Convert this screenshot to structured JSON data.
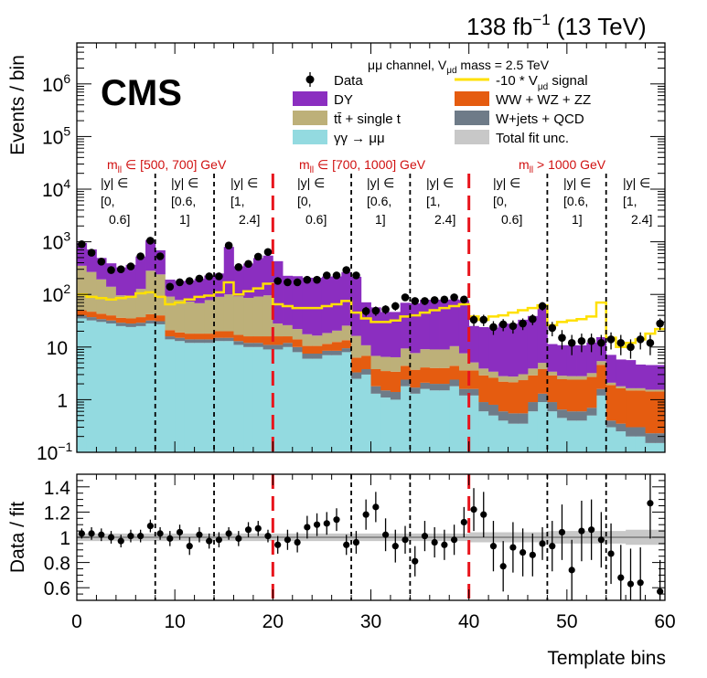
{
  "header": {
    "lumi": "138 fb",
    "lumi_exp": "−1",
    "energy": " (13 TeV)",
    "experiment": "CMS"
  },
  "legend": {
    "channel_text": "μμ channel, V",
    "channel_sub": "μd",
    "channel_tail": " mass = 2.5 TeV",
    "items": [
      {
        "label": "Data",
        "kind": "marker"
      },
      {
        "label": "-10 * V",
        "sub": "μd",
        "tail": " signal",
        "kind": "line",
        "color": "#ffe000"
      },
      {
        "label": "DY",
        "kind": "box",
        "color": "#8b2ec0"
      },
      {
        "label": "WW + WZ + ZZ",
        "kind": "box",
        "color": "#e55c10"
      },
      {
        "label": "tt̄ + single t",
        "kind": "box",
        "color": "#bdb079"
      },
      {
        "label": "W+jets + QCD",
        "kind": "box",
        "color": "#6e7b88"
      },
      {
        "label": "γγ → μμ",
        "kind": "box",
        "color": "#93dae0"
      },
      {
        "label": "Total fit unc.",
        "kind": "box",
        "color": "#c8c8c8"
      }
    ]
  },
  "regions": [
    {
      "mass": "m",
      "mass_sub": "ll",
      "mass_range": " ∈ [500, 700] GeV",
      "y": [
        {
          "l1": "|y| ∈",
          "l2": "[0,",
          "l3": "0.6]"
        },
        {
          "l1": "|y| ∈",
          "l2": "[0.6,",
          "l3": "1]"
        },
        {
          "l1": "|y| ∈",
          "l2": "[1,",
          "l3": "2.4]"
        }
      ]
    },
    {
      "mass": "m",
      "mass_sub": "ll",
      "mass_range": " ∈ [700, 1000] GeV",
      "y": [
        {
          "l1": "|y| ∈",
          "l2": "[0,",
          "l3": "0.6]"
        },
        {
          "l1": "|y| ∈",
          "l2": "[0.6,",
          "l3": "1]"
        },
        {
          "l1": "|y| ∈",
          "l2": "[1,",
          "l3": "2.4]"
        }
      ]
    },
    {
      "mass": "m",
      "mass_sub": "ll",
      "mass_range": " > 1000 GeV",
      "y": [
        {
          "l1": "|y| ∈",
          "l2": "[0,",
          "l3": "0.6]"
        },
        {
          "l1": "|y| ∈",
          "l2": "[0.6,",
          "l3": "1]"
        },
        {
          "l1": "|y| ∈",
          "l2": "[1,",
          "l3": "2.4]"
        }
      ]
    }
  ],
  "chart_data": {
    "type": "bar",
    "stacked": true,
    "xlabel": "Template bins",
    "ylabel_top": "Events / bin",
    "ylabel_bottom": "Data / fit",
    "xlim": [
      0,
      60
    ],
    "ylim_top": [
      0.1,
      6000000
    ],
    "ylim_bottom": [
      0.5,
      1.5
    ],
    "yscale_top": "log",
    "x_ticks": [
      0,
      10,
      20,
      30,
      40,
      50,
      60
    ],
    "y_ticks_top": [
      {
        "base": "10",
        "exp": "−1",
        "value": 0.1
      },
      {
        "base": "1",
        "exp": "",
        "value": 1
      },
      {
        "base": "10",
        "exp": "",
        "value": 10
      },
      {
        "base": "10",
        "exp": "2",
        "value": 100
      },
      {
        "base": "10",
        "exp": "3",
        "value": 1000
      },
      {
        "base": "10",
        "exp": "4",
        "value": 10000
      },
      {
        "base": "10",
        "exp": "5",
        "value": 100000
      },
      {
        "base": "10",
        "exp": "6",
        "value": 1000000
      }
    ],
    "y_ticks_bottom": [
      "0.6",
      "0.8",
      "1",
      "1.2",
      "1.4"
    ],
    "y_ticks_bottom_values": [
      0.6,
      0.8,
      1.0,
      1.2,
      1.4
    ],
    "mass_boundaries": [
      20,
      40
    ],
    "rapidity_boundaries": [
      8,
      14,
      28,
      34,
      48,
      54
    ],
    "bins": 60,
    "series": [
      {
        "name": "γγ → μμ",
        "color": "#93dae0",
        "values": [
          35,
          32,
          30,
          28,
          25,
          24,
          25,
          28,
          27,
          14,
          13,
          12,
          12,
          12,
          13,
          13,
          11,
          10,
          10,
          9,
          9,
          10,
          8,
          6,
          6,
          7,
          7,
          8,
          2.5,
          3,
          1.3,
          1.1,
          1,
          1.8,
          1.3,
          1.6,
          1.5,
          1.5,
          1.8,
          1.2,
          1.2,
          0.6,
          0.5,
          0.4,
          0.35,
          0.35,
          0.6,
          0.9,
          0.6,
          0.45,
          0.4,
          0.4,
          0.5,
          1.2,
          0.3,
          0.25,
          0.2,
          0.2,
          0.15,
          0.15
        ]
      },
      {
        "name": "W+jets + QCD",
        "color": "#6e7b88",
        "values": [
          5,
          5,
          4,
          4,
          4,
          4,
          4,
          4,
          4,
          2,
          2,
          2,
          2,
          2,
          2,
          2,
          2,
          2,
          2,
          2,
          2,
          2,
          2,
          1.5,
          1.5,
          1.5,
          1.5,
          1.5,
          0.8,
          0.8,
          0.5,
          0.4,
          0.4,
          0.6,
          0.4,
          0.5,
          0.5,
          0.5,
          0.6,
          0.4,
          0.4,
          0.3,
          0.3,
          0.2,
          0.2,
          0.2,
          0.3,
          0.4,
          0.3,
          0.2,
          0.2,
          0.2,
          0.2,
          0.4,
          0.1,
          0.1,
          0.1,
          0.1,
          0.08,
          0.08
        ]
      },
      {
        "name": "WW + WZ + ZZ",
        "color": "#e55c10",
        "values": [
          10,
          10,
          9,
          8,
          7,
          7,
          8,
          10,
          9,
          5,
          4,
          4,
          4,
          4,
          5,
          5,
          4,
          4,
          4,
          5,
          5,
          4,
          4,
          3,
          3,
          3,
          4,
          4,
          3,
          3,
          2,
          2,
          2,
          2,
          2,
          2,
          2,
          2,
          2,
          2,
          2,
          2,
          1.8,
          1.6,
          1.6,
          1.8,
          2,
          2.5,
          2,
          1.8,
          1.8,
          1.8,
          2,
          3,
          1.5,
          1.3,
          1.2,
          1.2,
          1.2,
          1.2
        ]
      },
      {
        "name": "tt̄ + single t",
        "color": "#bdb079",
        "values": [
          300,
          220,
          150,
          100,
          60,
          60,
          90,
          240,
          200,
          70,
          60,
          55,
          50,
          60,
          70,
          80,
          75,
          70,
          75,
          80,
          12,
          10,
          8,
          7,
          6,
          7,
          8,
          12,
          10,
          4,
          3,
          3,
          3,
          5,
          4,
          5,
          5,
          5,
          6,
          4,
          1.5,
          1,
          0.8,
          0.6,
          0.6,
          0.7,
          1,
          1.2,
          0.5,
          0.4,
          0.4,
          0.4,
          0.5,
          0.8,
          0.2,
          0.15,
          0.15,
          0.15,
          0.12,
          0.12
        ]
      },
      {
        "name": "DY",
        "color": "#8b2ec0",
        "values": [
          600,
          450,
          300,
          250,
          230,
          270,
          400,
          800,
          450,
          100,
          100,
          110,
          130,
          150,
          160,
          700,
          250,
          300,
          400,
          450,
          400,
          200,
          200,
          190,
          190,
          200,
          200,
          240,
          200,
          60,
          50,
          40,
          40,
          60,
          60,
          70,
          70,
          70,
          70,
          70,
          20,
          20,
          20,
          25,
          25,
          30,
          35,
          50,
          8,
          8,
          8,
          8,
          9,
          10,
          5,
          4,
          4,
          3,
          3,
          3
        ]
      }
    ],
    "data": {
      "name": "Data",
      "values": [
        900,
        620,
        420,
        290,
        300,
        340,
        530,
        1050,
        530,
        140,
        170,
        180,
        200,
        220,
        220,
        850,
        330,
        380,
        520,
        640,
        180,
        170,
        170,
        190,
        190,
        230,
        230,
        290,
        230,
        48,
        49,
        52,
        60,
        88,
        75,
        75,
        78,
        80,
        88,
        80,
        33,
        33,
        24,
        27,
        25,
        28,
        34,
        60,
        23,
        15,
        12,
        13,
        13,
        12,
        14,
        12,
        10,
        14,
        12,
        28
      ],
      "errors": [
        50,
        40,
        35,
        25,
        25,
        30,
        35,
        50,
        35,
        18,
        20,
        20,
        22,
        23,
        23,
        45,
        28,
        30,
        35,
        40,
        22,
        20,
        20,
        22,
        22,
        24,
        24,
        26,
        24,
        10,
        10,
        10,
        11,
        13,
        12,
        12,
        12,
        12,
        13,
        12,
        8,
        8,
        7,
        7,
        7,
        7,
        8,
        11,
        7,
        6,
        5,
        5,
        5,
        5,
        5,
        5,
        4,
        5,
        5,
        7
      ]
    },
    "signal": {
      "name": "-10 * Vμd signal",
      "values": [
        100,
        90,
        85,
        80,
        85,
        90,
        105,
        110,
        90,
        65,
        70,
        80,
        90,
        95,
        110,
        170,
        100,
        115,
        130,
        160,
        65,
        60,
        55,
        55,
        55,
        60,
        65,
        75,
        45,
        35,
        30,
        30,
        32,
        38,
        40,
        45,
        50,
        55,
        60,
        65,
        38,
        33,
        38,
        40,
        45,
        50,
        55,
        62,
        26,
        30,
        32,
        34,
        38,
        70,
        15,
        10,
        12,
        14,
        18,
        22
      ]
    },
    "total_fit": {
      "values": [
        950,
        720,
        490,
        370,
        325,
        365,
        525,
        1090,
        690,
        190,
        180,
        183,
        198,
        228,
        250,
        800,
        342,
        386,
        491,
        546,
        428,
        226,
        222,
        203,
        206,
        214,
        220,
        266,
        216,
        71,
        56,
        46,
        46,
        70,
        68,
        79,
        79,
        79,
        80,
        78,
        25,
        24,
        23,
        28,
        28,
        33,
        39,
        55,
        11,
        11,
        11,
        11,
        12,
        15,
        7,
        6,
        5.5,
        4.5,
        4.5,
        4.5
      ],
      "rel_unc": [
        0.03,
        0.03,
        0.03,
        0.03,
        0.03,
        0.03,
        0.03,
        0.03,
        0.03,
        0.03,
        0.03,
        0.03,
        0.03,
        0.03,
        0.03,
        0.03,
        0.03,
        0.03,
        0.03,
        0.03,
        0.03,
        0.03,
        0.03,
        0.03,
        0.03,
        0.03,
        0.03,
        0.03,
        0.03,
        0.03,
        0.03,
        0.03,
        0.03,
        0.03,
        0.03,
        0.03,
        0.03,
        0.03,
        0.03,
        0.03,
        0.04,
        0.04,
        0.04,
        0.04,
        0.04,
        0.04,
        0.04,
        0.04,
        0.05,
        0.05,
        0.05,
        0.05,
        0.05,
        0.05,
        0.05,
        0.05,
        0.06,
        0.06,
        0.06,
        0.06
      ]
    },
    "ratio": {
      "values": [
        1.03,
        1.03,
        1.02,
        1.0,
        0.97,
        1.01,
        1.01,
        1.09,
        1.03,
        0.99,
        1.04,
        0.93,
        1.02,
        0.97,
        0.98,
        1.03,
        0.99,
        1.06,
        1.07,
        1.01,
        0.94,
        0.98,
        0.96,
        1.08,
        1.1,
        1.11,
        1.14,
        0.94,
        0.96,
        1.18,
        1.24,
        1.02,
        0.93,
        0.98,
        0.81,
        1.01,
        0.96,
        0.94,
        0.98,
        1.12,
        1.22,
        1.18,
        0.93,
        0.77,
        0.92,
        0.88,
        0.86,
        0.95,
        0.93,
        1.04,
        0.74,
        1.05,
        1.06,
        0.98,
        0.87,
        0.68,
        0.63,
        0.64,
        1.27,
        0.57
      ],
      "errors": [
        0.04,
        0.05,
        0.05,
        0.05,
        0.05,
        0.05,
        0.05,
        0.05,
        0.05,
        0.06,
        0.06,
        0.07,
        0.06,
        0.06,
        0.06,
        0.05,
        0.06,
        0.06,
        0.06,
        0.05,
        0.07,
        0.08,
        0.08,
        0.09,
        0.09,
        0.09,
        0.09,
        0.08,
        0.09,
        0.12,
        0.12,
        0.13,
        0.13,
        0.11,
        0.12,
        0.12,
        0.12,
        0.12,
        0.12,
        0.12,
        0.17,
        0.18,
        0.2,
        0.2,
        0.2,
        0.19,
        0.17,
        0.13,
        0.2,
        0.22,
        0.24,
        0.24,
        0.24,
        0.22,
        0.24,
        0.26,
        0.28,
        0.28,
        0.28,
        0.25
      ]
    }
  }
}
